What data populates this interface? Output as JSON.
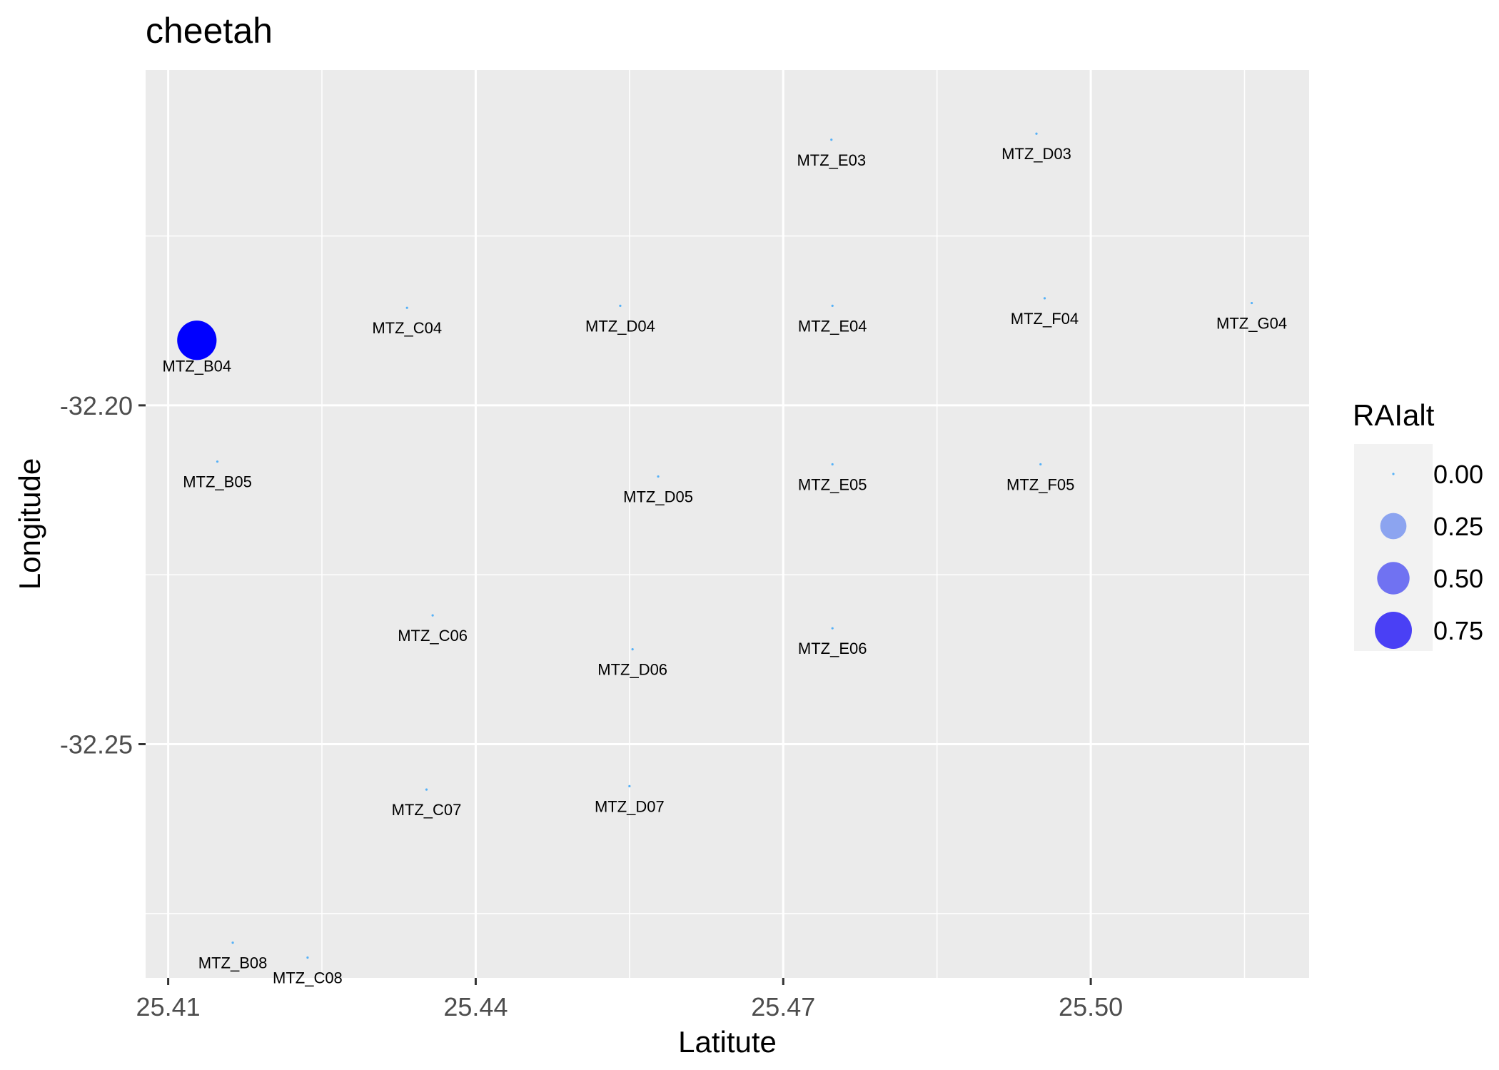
{
  "chart_data": {
    "type": "scatter",
    "title": "cheetah",
    "xlabel": "Latitute",
    "ylabel": "Longitude",
    "xlim": [
      25.4078,
      25.5213
    ],
    "ylim": [
      -32.2845,
      -32.1505
    ],
    "x_ticks": [
      25.41,
      25.44,
      25.47,
      25.5
    ],
    "x_tick_labels": [
      "25.41",
      "25.44",
      "25.47",
      "25.50"
    ],
    "x_minor_ticks": [
      25.425,
      25.455,
      25.485,
      25.515
    ],
    "y_ticks": [
      -32.2,
      -32.25
    ],
    "y_tick_labels": [
      "-32.20",
      "-32.25"
    ],
    "y_minor_ticks": [
      -32.175,
      -32.225,
      -32.275
    ],
    "grid": true,
    "background": "#EBEBEB",
    "gridline_color": "#FFFFFF",
    "point_color_low": "#56B1F7",
    "point_color_high": "#0000FF",
    "legend": {
      "title": "RAIalt",
      "position": "right",
      "entries": [
        {
          "label": "0.00",
          "value": 0.0,
          "color": "#56B1F7"
        },
        {
          "label": "0.25",
          "value": 0.25,
          "color": "#8CA4F0"
        },
        {
          "label": "0.50",
          "value": 0.5,
          "color": "#7072F2"
        },
        {
          "label": "0.75",
          "value": 0.75,
          "color": "#4A40F5"
        }
      ]
    },
    "points": [
      {
        "label": "MTZ_B04",
        "x": 25.4128,
        "y": -32.1904,
        "value": 0.8
      },
      {
        "label": "MTZ_C04",
        "x": 25.4333,
        "y": -32.1856,
        "value": 0.0
      },
      {
        "label": "MTZ_D04",
        "x": 25.4541,
        "y": -32.1853,
        "value": 0.0
      },
      {
        "label": "MTZ_E04",
        "x": 25.4748,
        "y": -32.1853,
        "value": 0.0
      },
      {
        "label": "MTZ_F04",
        "x": 25.4955,
        "y": -32.1842,
        "value": 0.0
      },
      {
        "label": "MTZ_G04",
        "x": 25.5157,
        "y": -32.1849,
        "value": 0.0
      },
      {
        "label": "MTZ_E03",
        "x": 25.4747,
        "y": -32.1608,
        "value": 0.0
      },
      {
        "label": "MTZ_D03",
        "x": 25.4947,
        "y": -32.1599,
        "value": 0.0
      },
      {
        "label": "MTZ_B05",
        "x": 25.4148,
        "y": -32.2083,
        "value": 0.0
      },
      {
        "label": "MTZ_D05",
        "x": 25.4578,
        "y": -32.2105,
        "value": 0.0
      },
      {
        "label": "MTZ_E05",
        "x": 25.4748,
        "y": -32.2087,
        "value": 0.0
      },
      {
        "label": "MTZ_F05",
        "x": 25.4951,
        "y": -32.2087,
        "value": 0.0
      },
      {
        "label": "MTZ_C06",
        "x": 25.4358,
        "y": -32.231,
        "value": 0.0
      },
      {
        "label": "MTZ_D06",
        "x": 25.4553,
        "y": -32.236,
        "value": 0.0
      },
      {
        "label": "MTZ_E06",
        "x": 25.4748,
        "y": -32.2329,
        "value": 0.0
      },
      {
        "label": "MTZ_C07",
        "x": 25.4352,
        "y": -32.2567,
        "value": 0.0
      },
      {
        "label": "MTZ_D07",
        "x": 25.455,
        "y": -32.2562,
        "value": 0.0
      },
      {
        "label": "MTZ_B08",
        "x": 25.4163,
        "y": -32.2793,
        "value": 0.0
      },
      {
        "label": "MTZ_C08",
        "x": 25.4236,
        "y": -32.2815,
        "value": 0.0
      }
    ]
  }
}
